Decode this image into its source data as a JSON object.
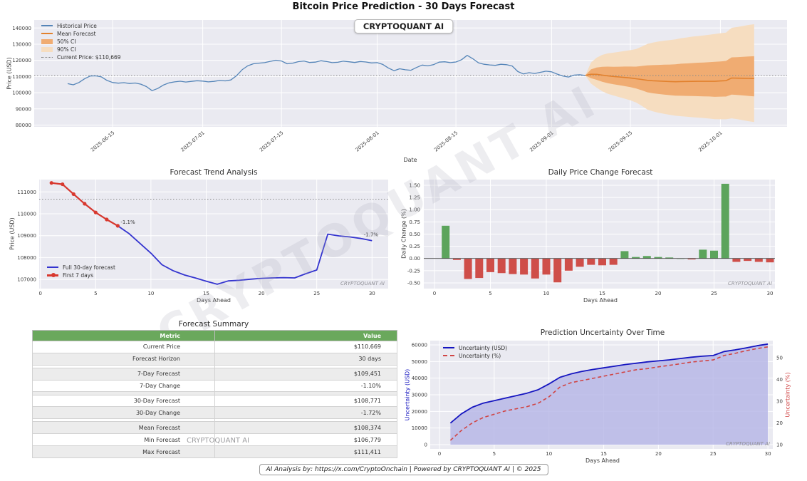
{
  "page": {
    "title": "Bitcoin Price Prediction - 30 Days Forecast",
    "brand": "CRYPTOQUANT AI",
    "footer": "AI Analysis by: https://x.com/CryptoOnchain | Powered by CRYPTOQUANT AI | © 2025"
  },
  "colors": {
    "historical": "#5585b8",
    "mean_forecast": "#e2812e",
    "ci50": "#f0ac72",
    "ci90": "#f6ddc0",
    "current_price_line": "#8a8a8a",
    "trend_full": "#3434cf",
    "trend_week": "#d8382e",
    "bar_up": "#5ca45c",
    "bar_down": "#cf4e49",
    "unc_usd": "#1515c0",
    "unc_fill": "#b4b4e6",
    "unc_pct": "#d04545",
    "table_header_bg": "#6aa85c",
    "plot_bg": "#eaeaf1",
    "grid": "#ffffff"
  },
  "chart_data": [
    {
      "id": "main_forecast",
      "type": "line",
      "title": "Bitcoin Price Prediction - 30 Days Forecast",
      "xlabel": "Date",
      "ylabel": "Price (USD)",
      "ylim": [
        78800,
        145000
      ],
      "yticks": [
        80000,
        90000,
        100000,
        110000,
        120000,
        130000,
        140000
      ],
      "xtick_labels": [
        "2025-06-15",
        "2025-07-01",
        "2025-07-15",
        "2025-08-01",
        "2025-08-15",
        "2025-09-01",
        "2025-09-15",
        "2025-10-01"
      ],
      "xtick_days": [
        8,
        24,
        38,
        55,
        69,
        86,
        100,
        116
      ],
      "legend": [
        "Historical Price",
        "Mean Forecast",
        "50% CI",
        "90% CI",
        "Current Price: $110,669"
      ],
      "current_price": 110669,
      "historical": {
        "start_date": "2025-06-07",
        "y": [
          105600,
          104900,
          106300,
          108600,
          110300,
          110400,
          109800,
          107600,
          106300,
          105900,
          106200,
          105700,
          106000,
          105300,
          103800,
          101300,
          102600,
          104700,
          106100,
          106700,
          107100,
          106600,
          107000,
          107400,
          107200,
          106700,
          107000,
          107600,
          107300,
          107900,
          110500,
          114200,
          116600,
          117900,
          118300,
          118600,
          119400,
          120100,
          119600,
          117900,
          118300,
          119200,
          119600,
          118700,
          118900,
          119800,
          119300,
          118600,
          118800,
          119500,
          119100,
          118700,
          119300,
          119000,
          118400,
          118600,
          117500,
          115300,
          113600,
          114800,
          114200,
          113900,
          115600,
          117100,
          116600,
          117300,
          118900,
          119100,
          118600,
          119000,
          120400,
          123100,
          121000,
          118500,
          117600,
          117200,
          116900,
          117600,
          117300,
          116500,
          113100,
          111600,
          112400,
          111900,
          112600,
          113300,
          112900,
          111500,
          110300,
          109700,
          110900,
          111100,
          110669
        ]
      },
      "forecast": {
        "start_day": 92,
        "mean": [
          110669,
          111411,
          111350,
          110900,
          110460,
          110060,
          109740,
          109451,
          109100,
          108650,
          108200,
          107670,
          107400,
          107210,
          107070,
          106920,
          106779,
          106930,
          106960,
          107010,
          107050,
          107070,
          107080,
          107070,
          107260,
          107430,
          109070,
          108990,
          108940,
          108870,
          108771
        ],
        "ci90_half": [
          0,
          6500,
          9250,
          11250,
          12500,
          13250,
          14000,
          14750,
          15500,
          16500,
          18250,
          20250,
          21250,
          22000,
          22600,
          23100,
          23600,
          24100,
          24500,
          24900,
          25200,
          25500,
          25900,
          26300,
          26600,
          26800,
          28000,
          28500,
          29100,
          29750,
          30250
        ],
        "ci50_half": [
          0,
          2700,
          3800,
          4600,
          5100,
          5400,
          5700,
          6050,
          6350,
          6750,
          7500,
          8300,
          8700,
          9000,
          9250,
          9450,
          9700,
          9900,
          10050,
          10200,
          10350,
          10450,
          10600,
          10800,
          10900,
          11000,
          11500,
          11700,
          11900,
          12200,
          12400
        ],
        "skew_up": 1.11,
        "skew_down": 0.89
      }
    },
    {
      "id": "trend",
      "type": "line",
      "title": "Forecast Trend Analysis",
      "xlabel": "Days Ahead",
      "ylabel": "Price (USD)",
      "yticks": [
        107000,
        108000,
        109000,
        110000,
        111000
      ],
      "xticks": [
        0,
        5,
        10,
        15,
        20,
        25,
        30
      ],
      "current_price": 110669,
      "full_forecast": [
        111411,
        111350,
        110900,
        110460,
        110060,
        109740,
        109451,
        109100,
        108650,
        108200,
        107670,
        107400,
        107210,
        107070,
        106920,
        106779,
        106930,
        106960,
        107010,
        107050,
        107070,
        107080,
        107070,
        107260,
        107430,
        109070,
        108990,
        108940,
        108870,
        108771
      ],
      "first7": [
        111411,
        111350,
        110900,
        110460,
        110060,
        109740,
        109451
      ],
      "legend": [
        "Full 30-day forecast",
        "First 7 days"
      ],
      "annotations": [
        {
          "day": 7,
          "value": 109451,
          "text": "-1.1%"
        },
        {
          "day": 29,
          "value": 108870,
          "text": "-1.7%"
        }
      ]
    },
    {
      "id": "daily_change",
      "type": "bar",
      "title": "Daily Price Change Forecast",
      "xlabel": "Days Ahead",
      "ylabel": "Daily Change (%)",
      "yticks": [
        -0.5,
        -0.25,
        0.0,
        0.25,
        0.5,
        0.75,
        1.0,
        1.25,
        1.5
      ],
      "xticks": [
        0,
        5,
        10,
        15,
        20,
        25,
        30
      ],
      "values": [
        0.67,
        -0.03,
        -0.42,
        -0.4,
        -0.28,
        -0.3,
        -0.32,
        -0.33,
        -0.41,
        -0.33,
        -0.49,
        -0.25,
        -0.17,
        -0.13,
        -0.14,
        -0.13,
        0.15,
        0.03,
        0.05,
        0.03,
        0.02,
        0.0,
        -0.02,
        0.18,
        0.16,
        1.53,
        -0.07,
        -0.05,
        -0.07,
        -0.08
      ]
    },
    {
      "id": "forecast_summary",
      "type": "table",
      "title": "Forecast Summary",
      "headers": [
        "Metric",
        "Value"
      ],
      "rows": [
        [
          "Current Price",
          "$110,669"
        ],
        [
          "Forecast Horizon",
          "30 days"
        ],
        [
          "",
          ""
        ],
        [
          "7-Day Forecast",
          "$109,451"
        ],
        [
          "7-Day Change",
          "-1.10%"
        ],
        [
          "",
          ""
        ],
        [
          "30-Day Forecast",
          "$108,771"
        ],
        [
          "30-Day Change",
          "-1.72%"
        ],
        [
          "",
          ""
        ],
        [
          "Mean Forecast",
          "$108,374"
        ],
        [
          "Min Forecast",
          "$106,779"
        ],
        [
          "Max Forecast",
          "$111,411"
        ]
      ]
    },
    {
      "id": "uncertainty",
      "type": "line",
      "title": "Prediction Uncertainty Over Time",
      "xlabel": "Days Ahead",
      "ylabel_left": "Uncertainty (USD)",
      "ylabel_right": "Uncertainty (%)",
      "yticks_left": [
        0,
        10000,
        20000,
        30000,
        40000,
        50000,
        60000
      ],
      "yticks_right": [
        10,
        20,
        30,
        40,
        50
      ],
      "xticks": [
        0,
        5,
        10,
        15,
        20,
        25,
        30
      ],
      "legend": [
        "Uncertainty (USD)",
        "Uncertainty (%)"
      ],
      "usd": [
        13000,
        18500,
        22500,
        25000,
        26500,
        28000,
        29500,
        31000,
        33000,
        36500,
        40500,
        42500,
        44000,
        45200,
        46200,
        47200,
        48200,
        49000,
        49800,
        50400,
        51000,
        51800,
        52600,
        53200,
        53600,
        56000,
        57000,
        58200,
        59500,
        60500
      ],
      "pct": [
        12,
        16.5,
        20,
        22.5,
        24,
        25.5,
        26.5,
        27.5,
        29,
        32,
        36.5,
        38.5,
        39.5,
        40.5,
        41.5,
        42.5,
        43.5,
        44.5,
        45,
        45.8,
        46.5,
        47.2,
        48,
        48.5,
        49,
        51,
        52,
        53.2,
        54.2,
        55
      ]
    }
  ]
}
